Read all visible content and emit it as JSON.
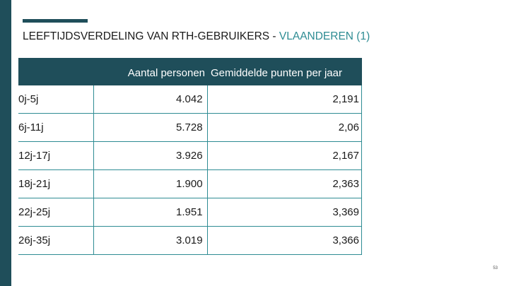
{
  "slide": {
    "title_main": "LEEFTIJDSVERDELING VAN RTH-GEBRUIKERS - ",
    "title_highlight": "VLAANDEREN (1)",
    "page_number": "53"
  },
  "colors": {
    "dark_teal": "#1f4e5a",
    "accent_teal": "#2e8c93"
  },
  "table": {
    "headers": [
      "",
      "Aantal personen",
      "Gemiddelde punten per jaar"
    ],
    "rows": [
      [
        "0j-5j",
        "4.042",
        "2,191"
      ],
      [
        "6j-11j",
        "5.728",
        "2,06"
      ],
      [
        "12j-17j",
        "3.926",
        "2,167"
      ],
      [
        "18j-21j",
        "1.900",
        "2,363"
      ],
      [
        "22j-25j",
        "1.951",
        "3,369"
      ],
      [
        "26j-35j",
        "3.019",
        "3,366"
      ]
    ]
  }
}
